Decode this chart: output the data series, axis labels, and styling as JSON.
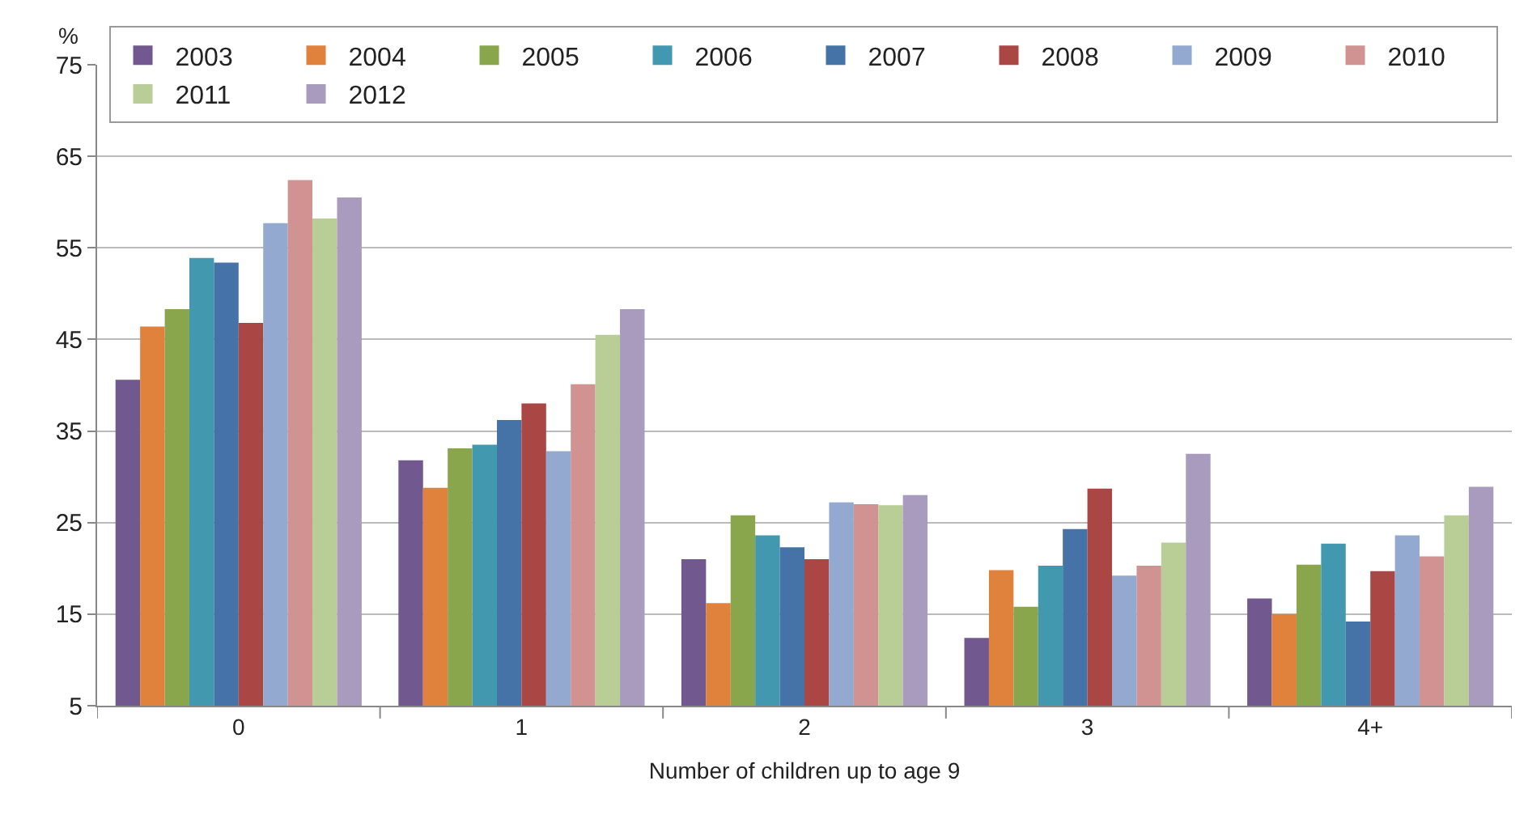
{
  "chart_data": {
    "type": "bar",
    "xlabel": "Number of children up to age 9",
    "ylabel": "%",
    "categories": [
      "0",
      "1",
      "2",
      "3",
      "4+"
    ],
    "ylim": [
      5,
      75
    ],
    "yticks": [
      5,
      15,
      25,
      35,
      45,
      55,
      65,
      75
    ],
    "grid": "y",
    "legend": "top right",
    "series": [
      {
        "name": "2003",
        "color": "#71588f",
        "values": [
          40.6,
          31.8,
          21.0,
          12.4,
          16.7
        ]
      },
      {
        "name": "2004",
        "color": "#e0823b",
        "values": [
          46.4,
          28.8,
          16.2,
          19.8,
          15.0
        ]
      },
      {
        "name": "2005",
        "color": "#8aa64d",
        "values": [
          48.3,
          33.1,
          25.8,
          15.8,
          20.4
        ]
      },
      {
        "name": "2006",
        "color": "#4198af",
        "values": [
          53.9,
          33.5,
          23.6,
          20.3,
          22.7
        ]
      },
      {
        "name": "2007",
        "color": "#4573a7",
        "values": [
          53.4,
          36.2,
          22.3,
          24.3,
          14.2
        ]
      },
      {
        "name": "2008",
        "color": "#aa4644",
        "values": [
          46.8,
          38.0,
          21.0,
          28.7,
          19.7
        ]
      },
      {
        "name": "2009",
        "color": "#93a9cf",
        "values": [
          57.7,
          32.8,
          27.2,
          19.2,
          23.6
        ]
      },
      {
        "name": "2010",
        "color": "#d09392",
        "values": [
          62.4,
          40.1,
          27.0,
          20.3,
          21.3
        ]
      },
      {
        "name": "2011",
        "color": "#b9cd96",
        "values": [
          58.2,
          45.5,
          26.9,
          22.8,
          25.8
        ]
      },
      {
        "name": "2012",
        "color": "#a99bbd",
        "values": [
          60.5,
          48.3,
          28.0,
          32.5,
          28.9
        ]
      }
    ]
  }
}
